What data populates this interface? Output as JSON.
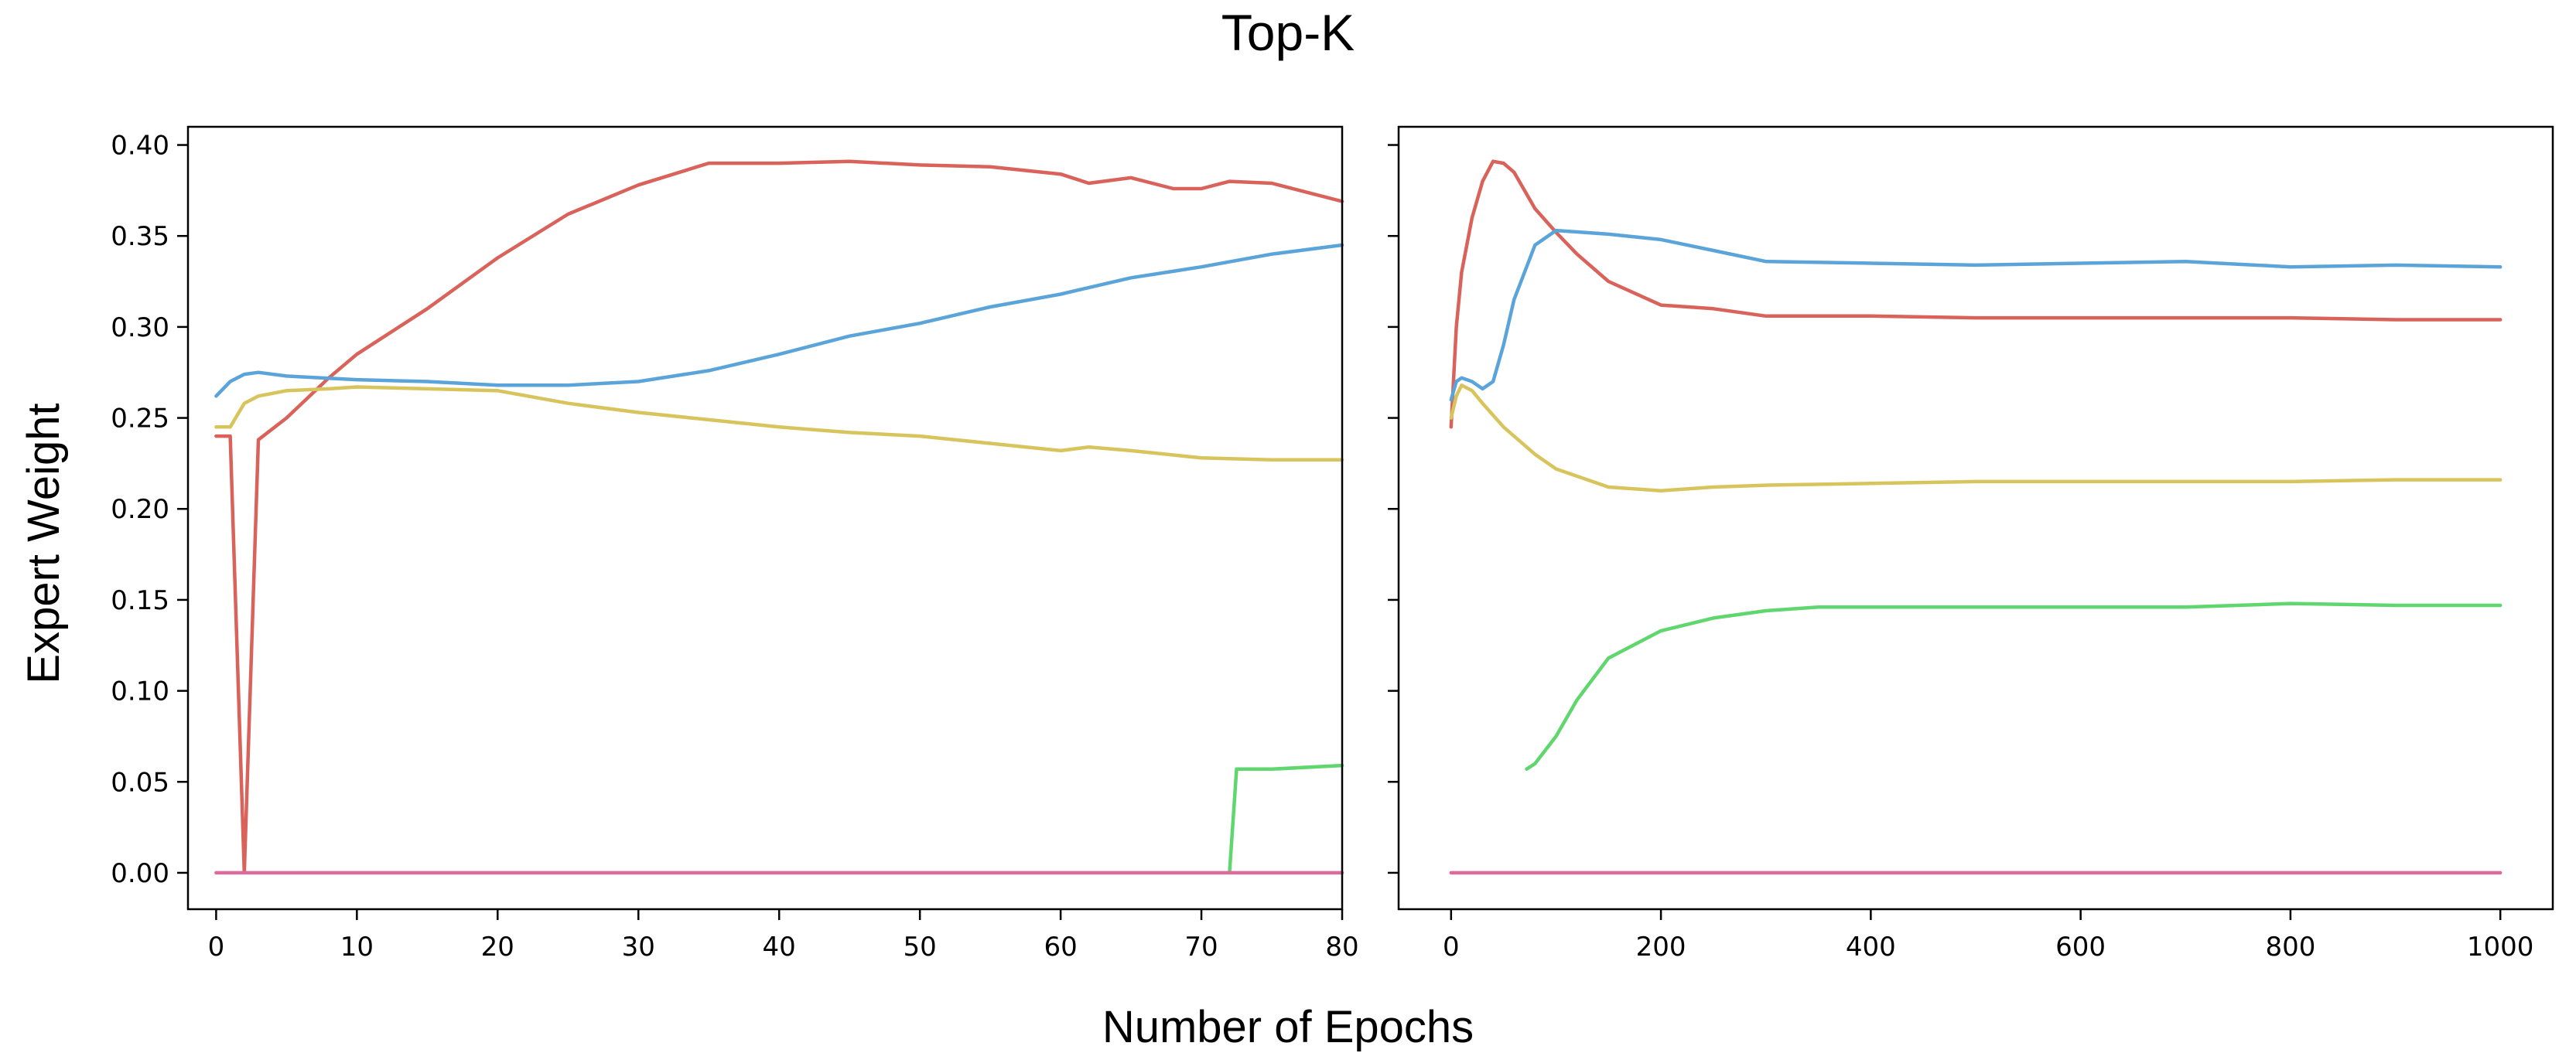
{
  "figure": {
    "title": "Top-K",
    "xlabel": "Number of Epochs",
    "ylabel": "Expert Weight"
  },
  "chart_data": [
    {
      "type": "line",
      "panel": "left",
      "xlim": [
        -2,
        80
      ],
      "ylim": [
        -0.02,
        0.41
      ],
      "x_ticks": [
        0,
        10,
        20,
        30,
        40,
        50,
        60,
        70,
        80
      ],
      "y_ticks": [
        "0.00",
        "0.05",
        "0.10",
        "0.15",
        "0.20",
        "0.25",
        "0.30",
        "0.35",
        "0.40"
      ],
      "grid": false,
      "legend": "none",
      "series": [
        {
          "color": "#d9625a",
          "x": [
            0,
            1,
            2,
            3,
            5,
            8,
            10,
            15,
            20,
            25,
            30,
            35,
            40,
            45,
            50,
            55,
            60,
            62,
            65,
            68,
            70,
            72,
            75,
            80
          ],
          "y": [
            0.24,
            0.24,
            0.0,
            0.238,
            0.25,
            0.272,
            0.285,
            0.31,
            0.338,
            0.362,
            0.378,
            0.39,
            0.39,
            0.391,
            0.389,
            0.388,
            0.384,
            0.379,
            0.382,
            0.376,
            0.376,
            0.38,
            0.379,
            0.369
          ]
        },
        {
          "color": "#5ba4da",
          "x": [
            0,
            1,
            2,
            3,
            5,
            10,
            15,
            20,
            25,
            30,
            35,
            40,
            45,
            50,
            55,
            60,
            65,
            70,
            75,
            80
          ],
          "y": [
            0.262,
            0.27,
            0.274,
            0.275,
            0.273,
            0.271,
            0.27,
            0.268,
            0.268,
            0.27,
            0.276,
            0.285,
            0.295,
            0.302,
            0.311,
            0.318,
            0.327,
            0.333,
            0.34,
            0.345
          ]
        },
        {
          "color": "#d8c45c",
          "x": [
            0,
            1,
            2,
            3,
            5,
            8,
            10,
            15,
            20,
            25,
            30,
            35,
            40,
            45,
            50,
            55,
            60,
            62,
            65,
            70,
            75,
            80
          ],
          "y": [
            0.245,
            0.245,
            0.258,
            0.262,
            0.265,
            0.266,
            0.267,
            0.266,
            0.265,
            0.258,
            0.253,
            0.249,
            0.245,
            0.242,
            0.24,
            0.236,
            0.232,
            0.234,
            0.232,
            0.228,
            0.227,
            0.227
          ]
        },
        {
          "color": "#5fd66e",
          "x": [
            72,
            72.5,
            75,
            80
          ],
          "y": [
            0.0,
            0.057,
            0.057,
            0.059
          ]
        },
        {
          "color": "#dd6a9c",
          "x": [
            0,
            80
          ],
          "y": [
            0.0,
            0.0
          ]
        }
      ]
    },
    {
      "type": "line",
      "panel": "right",
      "xlim": [
        -50,
        1050
      ],
      "ylim": [
        -0.02,
        0.41
      ],
      "x_ticks": [
        0,
        200,
        400,
        600,
        800,
        1000
      ],
      "grid": false,
      "legend": "none",
      "series": [
        {
          "color": "#d9625a",
          "x": [
            0,
            5,
            10,
            20,
            30,
            40,
            50,
            60,
            70,
            80,
            100,
            120,
            150,
            200,
            250,
            300,
            400,
            500,
            600,
            700,
            800,
            900,
            1000
          ],
          "y": [
            0.245,
            0.3,
            0.33,
            0.36,
            0.38,
            0.391,
            0.39,
            0.385,
            0.375,
            0.365,
            0.352,
            0.34,
            0.325,
            0.312,
            0.31,
            0.306,
            0.306,
            0.305,
            0.305,
            0.305,
            0.305,
            0.304,
            0.304
          ]
        },
        {
          "color": "#5ba4da",
          "x": [
            0,
            5,
            10,
            20,
            30,
            40,
            50,
            60,
            80,
            100,
            150,
            200,
            250,
            300,
            400,
            500,
            600,
            700,
            800,
            900,
            1000
          ],
          "y": [
            0.26,
            0.27,
            0.272,
            0.27,
            0.266,
            0.27,
            0.29,
            0.315,
            0.345,
            0.353,
            0.351,
            0.348,
            0.342,
            0.336,
            0.335,
            0.334,
            0.335,
            0.336,
            0.333,
            0.334,
            0.333
          ]
        },
        {
          "color": "#d8c45c",
          "x": [
            0,
            5,
            10,
            20,
            30,
            50,
            80,
            100,
            150,
            200,
            250,
            300,
            400,
            500,
            600,
            700,
            800,
            900,
            1000
          ],
          "y": [
            0.25,
            0.262,
            0.268,
            0.265,
            0.258,
            0.245,
            0.23,
            0.222,
            0.212,
            0.21,
            0.212,
            0.213,
            0.214,
            0.215,
            0.215,
            0.215,
            0.215,
            0.216,
            0.216
          ]
        },
        {
          "color": "#5fd66e",
          "x": [
            72,
            80,
            100,
            120,
            150,
            200,
            250,
            300,
            350,
            400,
            500,
            600,
            700,
            800,
            900,
            1000
          ],
          "y": [
            0.057,
            0.06,
            0.075,
            0.095,
            0.118,
            0.133,
            0.14,
            0.144,
            0.146,
            0.146,
            0.146,
            0.146,
            0.146,
            0.148,
            0.147,
            0.147
          ]
        },
        {
          "color": "#dd6a9c",
          "x": [
            0,
            1000
          ],
          "y": [
            0.0,
            0.0
          ]
        }
      ]
    }
  ]
}
